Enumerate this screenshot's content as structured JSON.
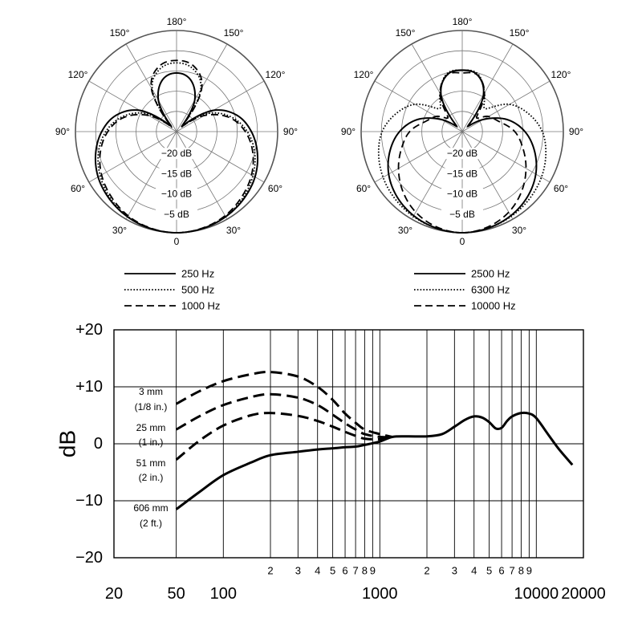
{
  "chart_data": [
    {
      "type": "polar",
      "angle_labels": {
        "0": "0",
        "30": "30°",
        "60": "60°",
        "90": "90°",
        "120": "120°",
        "150": "150°",
        "180": "180°",
        "210": "150°",
        "240": "120°",
        "270": "90°",
        "300": "60°",
        "330": "30°"
      },
      "ring_labels": [
        "−20 dB",
        "−15 dB",
        "−10 dB",
        "−5 dB"
      ],
      "rlim": [
        -25,
        0
      ],
      "series": [
        {
          "name": "250 Hz",
          "style": "solid",
          "angles": [
            0,
            15,
            30,
            45,
            60,
            75,
            90,
            105,
            120,
            135,
            150,
            165,
            180
          ],
          "values": [
            0,
            -0.2,
            -0.7,
            -1.5,
            -2.6,
            -4.3,
            -6.5,
            -9.5,
            -14.5,
            -23,
            -16,
            -11.7,
            -10.5
          ]
        },
        {
          "name": "500 Hz",
          "style": "dotted",
          "angles": [
            0,
            15,
            30,
            45,
            60,
            75,
            90,
            105,
            120,
            135,
            150,
            165,
            180
          ],
          "values": [
            0,
            -0.2,
            -0.8,
            -1.8,
            -3.2,
            -5.0,
            -7.5,
            -11,
            -16,
            -23.5,
            -13,
            -9.0,
            -8.0
          ]
        },
        {
          "name": "1000 Hz",
          "style": "dashed",
          "angles": [
            0,
            15,
            30,
            45,
            60,
            75,
            90,
            105,
            120,
            135,
            150,
            165,
            180
          ],
          "values": [
            0,
            -0.3,
            -1.0,
            -2.2,
            -3.6,
            -5.5,
            -8.0,
            -11.5,
            -17,
            -23,
            -12.5,
            -8.3,
            -7.4
          ]
        }
      ]
    },
    {
      "type": "polar",
      "angle_labels": {
        "0": "0",
        "30": "30°",
        "60": "60°",
        "90": "90°",
        "120": "120°",
        "150": "150°",
        "180": "180°",
        "210": "150°",
        "240": "120°",
        "270": "90°",
        "300": "60°",
        "330": "30°"
      },
      "ring_labels": [
        "−20 dB",
        "−15 dB",
        "−10 dB",
        "−5 dB"
      ],
      "rlim": [
        -25,
        0
      ],
      "series": [
        {
          "name": "2500 Hz",
          "style": "solid",
          "angles": [
            0,
            15,
            30,
            45,
            60,
            75,
            90,
            105,
            120,
            135,
            150,
            165,
            180
          ],
          "values": [
            0,
            -0.3,
            -1.0,
            -2.2,
            -4.0,
            -6.5,
            -9.5,
            -13.5,
            -19,
            -23,
            -14.5,
            -10.5,
            -9.8
          ]
        },
        {
          "name": "6300 Hz",
          "style": "dotted",
          "angles": [
            0,
            15,
            30,
            45,
            60,
            75,
            90,
            105,
            120,
            135,
            150,
            165,
            180
          ],
          "values": [
            0,
            -0.3,
            -0.8,
            -1.5,
            -2.4,
            -3.6,
            -5.2,
            -8.0,
            -11.5,
            -17,
            -14,
            -10.2,
            -9.8
          ]
        },
        {
          "name": "10000 Hz",
          "style": "dashed",
          "angles": [
            0,
            15,
            30,
            45,
            60,
            75,
            90,
            105,
            120,
            135,
            150,
            165,
            180
          ],
          "values": [
            0,
            -0.6,
            -2.0,
            -4.2,
            -6.8,
            -9.5,
            -12,
            -15.5,
            -17.5,
            -20,
            -14,
            -10.5,
            -10.5
          ]
        }
      ]
    },
    {
      "type": "line",
      "xscale": "log",
      "xlim": [
        20,
        20000
      ],
      "ylim": [
        -20,
        20
      ],
      "ylabel": "dB",
      "x_ticks": [
        {
          "value": 20,
          "label": "20"
        },
        {
          "value": 50,
          "label": "50"
        },
        {
          "value": 100,
          "label": "100"
        },
        {
          "value": 1000,
          "label": "1000"
        },
        {
          "value": 10000,
          "label": "10000"
        },
        {
          "value": 20000,
          "label": "20000"
        }
      ],
      "x_minor_ticks": [
        {
          "value": 200,
          "label": "2"
        },
        {
          "value": 300,
          "label": "3"
        },
        {
          "value": 400,
          "label": "4"
        },
        {
          "value": 500,
          "label": "5"
        },
        {
          "value": 600,
          "label": "6"
        },
        {
          "value": 700,
          "label": "7"
        },
        {
          "value": 800,
          "label": "8"
        },
        {
          "value": 900,
          "label": "9"
        },
        {
          "value": 2000,
          "label": "2"
        },
        {
          "value": 3000,
          "label": "3"
        },
        {
          "value": 4000,
          "label": "4"
        },
        {
          "value": 5000,
          "label": "5"
        },
        {
          "value": 6000,
          "label": "6"
        },
        {
          "value": 7000,
          "label": "7"
        },
        {
          "value": 8000,
          "label": "8"
        },
        {
          "value": 9000,
          "label": "9"
        }
      ],
      "y_ticks": [
        {
          "value": 20,
          "label": "+20"
        },
        {
          "value": 10,
          "label": "+10"
        },
        {
          "value": 0,
          "label": "0"
        },
        {
          "value": -10,
          "label": "−10"
        },
        {
          "value": -20,
          "label": "−20"
        }
      ],
      "grid": true,
      "series": [
        {
          "name": "606 mm (2 ft.)",
          "style": "solid",
          "x": [
            50,
            70,
            100,
            150,
            200,
            300,
            400,
            500,
            600,
            700,
            800,
            1000,
            1200,
            1500,
            2000,
            2500,
            3000,
            3500,
            4000,
            4500,
            5000,
            5500,
            6000,
            6500,
            7000,
            8000,
            9000,
            10000,
            12000,
            14000,
            17000
          ],
          "y": [
            -11.5,
            -8.5,
            -5.5,
            -3.3,
            -2.0,
            -1.4,
            -1.0,
            -0.8,
            -0.6,
            -0.5,
            -0.2,
            0.4,
            1.2,
            1.3,
            1.3,
            1.7,
            3.0,
            4.2,
            4.8,
            4.6,
            3.8,
            2.7,
            2.8,
            4.0,
            4.8,
            5.4,
            5.3,
            4.5,
            1.5,
            -1.0,
            -3.7
          ]
        },
        {
          "name": "51 mm (2 in.)",
          "style": "dashed",
          "x": [
            50,
            70,
            100,
            150,
            200,
            300,
            400,
            500,
            600,
            700,
            800,
            1000,
            1200
          ],
          "y": [
            -2.8,
            0.5,
            3.2,
            5.0,
            5.4,
            4.9,
            4.0,
            3.0,
            2.1,
            1.4,
            0.9,
            0.8,
            1.2
          ]
        },
        {
          "name": "25 mm (1 in.)",
          "style": "dashed",
          "x": [
            50,
            70,
            100,
            150,
            200,
            300,
            400,
            500,
            600,
            700,
            800,
            1000,
            1200
          ],
          "y": [
            2.5,
            4.8,
            6.8,
            8.2,
            8.7,
            8.1,
            6.8,
            5.1,
            3.6,
            2.5,
            1.7,
            1.2,
            1.2
          ]
        },
        {
          "name": "3 mm (1/8 in.)",
          "style": "dashed",
          "x": [
            50,
            70,
            100,
            150,
            200,
            300,
            400,
            500,
            600,
            700,
            800,
            1000,
            1200
          ],
          "y": [
            7.0,
            9.2,
            11.0,
            12.2,
            12.6,
            11.8,
            10.0,
            7.7,
            5.3,
            3.7,
            2.5,
            1.7,
            1.2
          ]
        }
      ],
      "curve_labels": [
        {
          "line1": "3 mm",
          "line2": "(1/8 in.)"
        },
        {
          "line1": "25 mm",
          "line2": "(1 in.)"
        },
        {
          "line1": "51 mm",
          "line2": "(2 in.)"
        },
        {
          "line1": "606 mm",
          "line2": "(2 ft.)"
        }
      ]
    }
  ]
}
